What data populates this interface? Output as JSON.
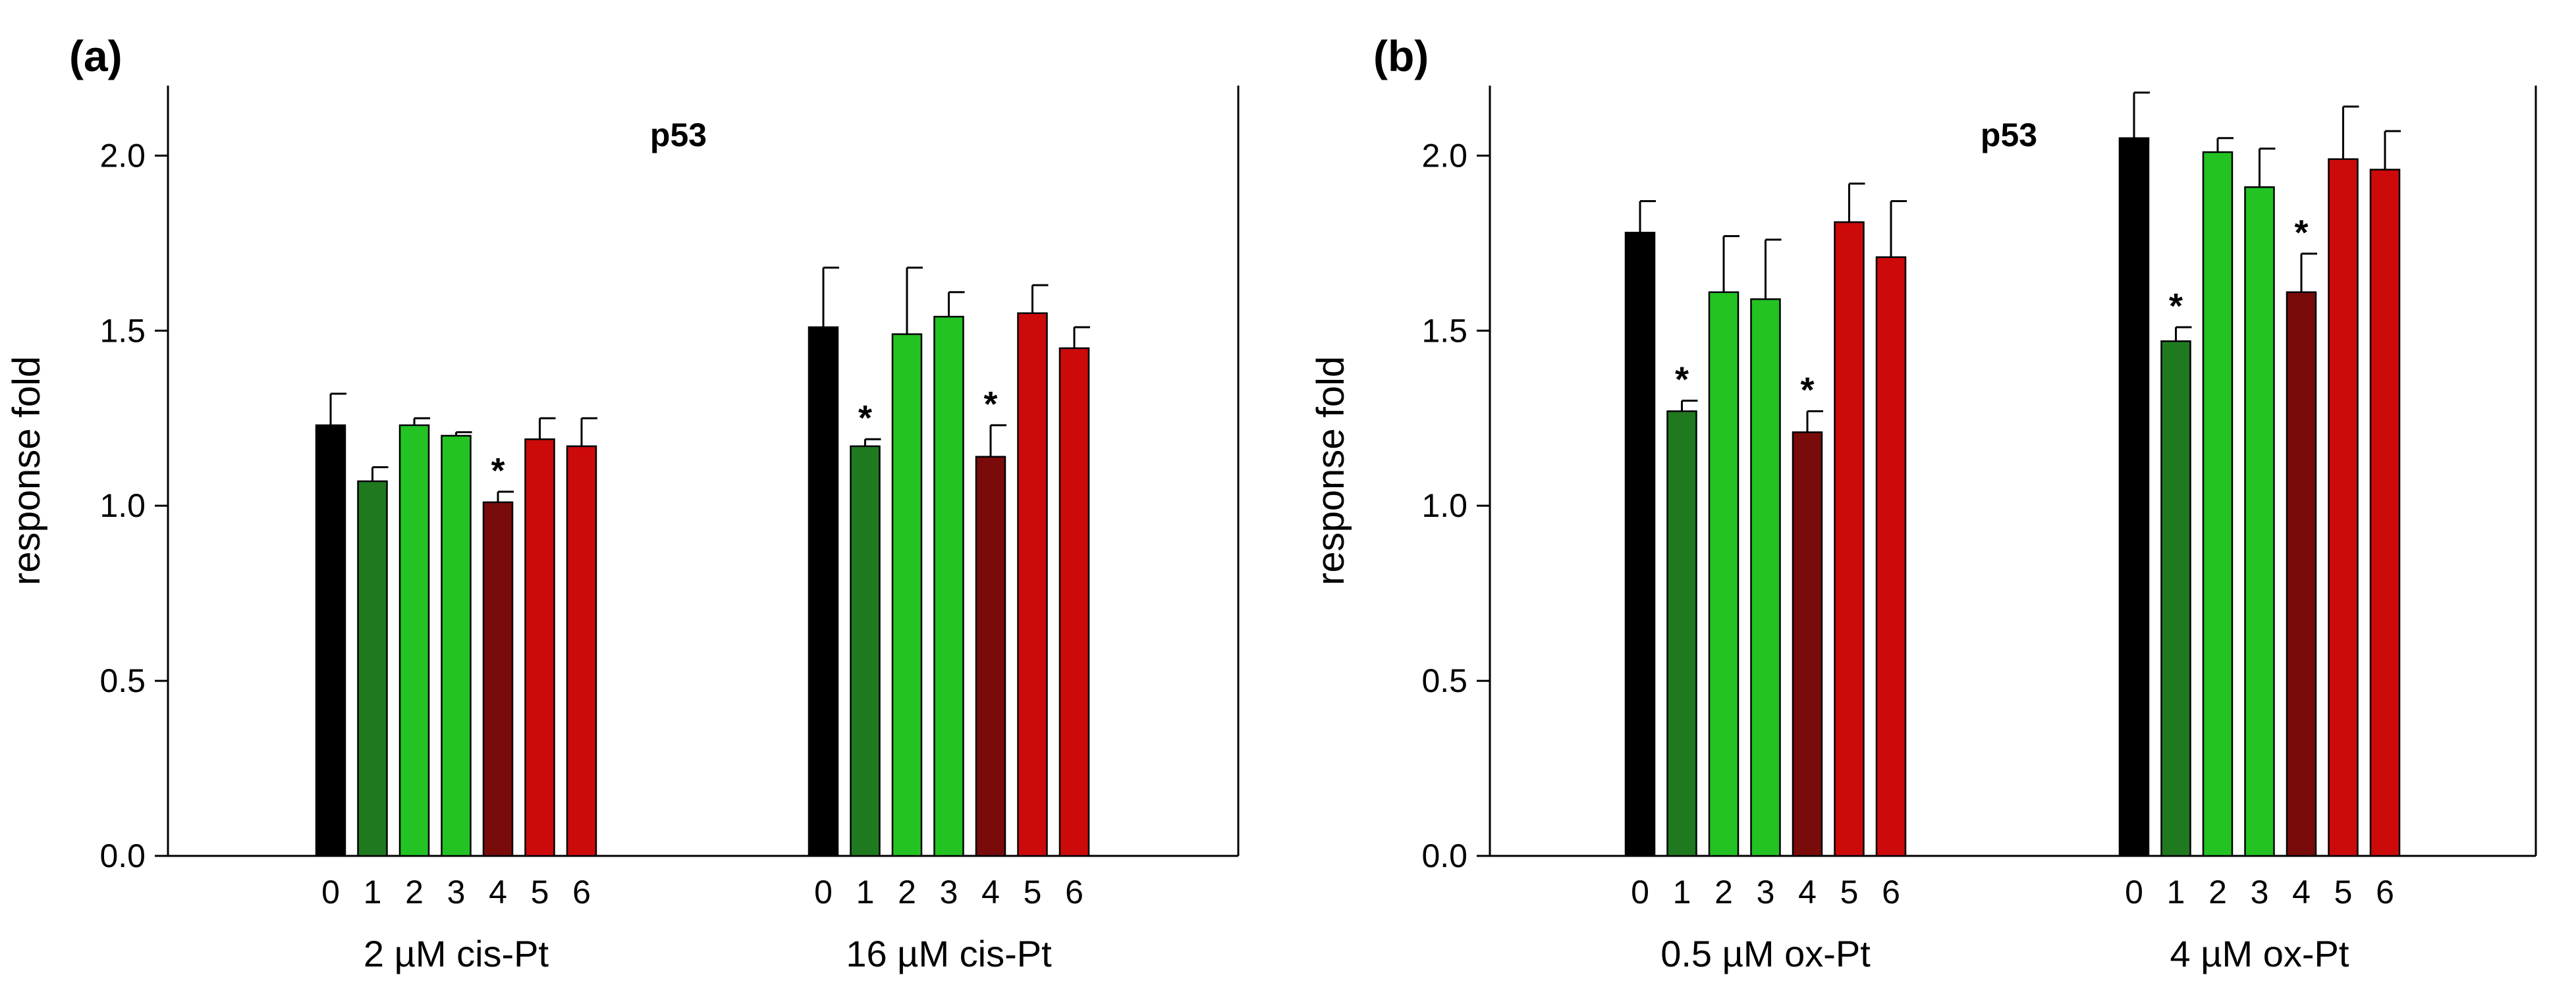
{
  "chart_data": [
    {
      "type": "bar",
      "panel_label": "(a)",
      "title": "p53",
      "ylabel": "response fold",
      "xlabel": "",
      "ylim": [
        0,
        2.2
      ],
      "yticks": [
        "0.0",
        "0.5",
        "1.0",
        "1.5",
        "2.0"
      ],
      "categories": [
        "0",
        "1",
        "2",
        "3",
        "4",
        "5",
        "6"
      ],
      "colors": [
        "#000000",
        "#1f7a1f",
        "#22c322",
        "#22c322",
        "#7a0b0b",
        "#cc0a0a",
        "#cc0a0a"
      ],
      "groups": [
        {
          "label": "2 µM cis-Pt",
          "values": [
            1.23,
            1.07,
            1.23,
            1.2,
            1.01,
            1.19,
            1.17
          ],
          "errors": [
            0.09,
            0.04,
            0.02,
            0.01,
            0.03,
            0.06,
            0.08
          ],
          "significant": [
            false,
            false,
            false,
            false,
            true,
            false,
            false
          ]
        },
        {
          "label": "16 µM cis-Pt",
          "values": [
            1.51,
            1.17,
            1.49,
            1.54,
            1.14,
            1.55,
            1.45
          ],
          "errors": [
            0.17,
            0.02,
            0.19,
            0.07,
            0.09,
            0.08,
            0.06
          ],
          "significant": [
            false,
            true,
            false,
            false,
            true,
            false,
            false
          ]
        }
      ],
      "significance_marker": "*"
    },
    {
      "type": "bar",
      "panel_label": "(b)",
      "title": "p53",
      "ylabel": "response fold",
      "xlabel": "",
      "ylim": [
        0,
        2.2
      ],
      "yticks": [
        "0.0",
        "0.5",
        "1.0",
        "1.5",
        "2.0"
      ],
      "categories": [
        "0",
        "1",
        "2",
        "3",
        "4",
        "5",
        "6"
      ],
      "colors": [
        "#000000",
        "#1f7a1f",
        "#22c322",
        "#22c322",
        "#7a0b0b",
        "#cc0a0a",
        "#cc0a0a"
      ],
      "groups": [
        {
          "label": "0.5 µM ox-Pt",
          "values": [
            1.78,
            1.27,
            1.61,
            1.59,
            1.21,
            1.81,
            1.71
          ],
          "errors": [
            0.09,
            0.03,
            0.16,
            0.17,
            0.06,
            0.11,
            0.16
          ],
          "significant": [
            false,
            true,
            false,
            false,
            true,
            false,
            false
          ]
        },
        {
          "label": "4 µM ox-Pt",
          "values": [
            2.05,
            1.47,
            2.01,
            1.91,
            1.61,
            1.99,
            1.96
          ],
          "errors": [
            0.13,
            0.04,
            0.04,
            0.11,
            0.11,
            0.15,
            0.11
          ],
          "significant": [
            false,
            true,
            false,
            false,
            true,
            false,
            false
          ]
        }
      ],
      "significance_marker": "*"
    }
  ]
}
